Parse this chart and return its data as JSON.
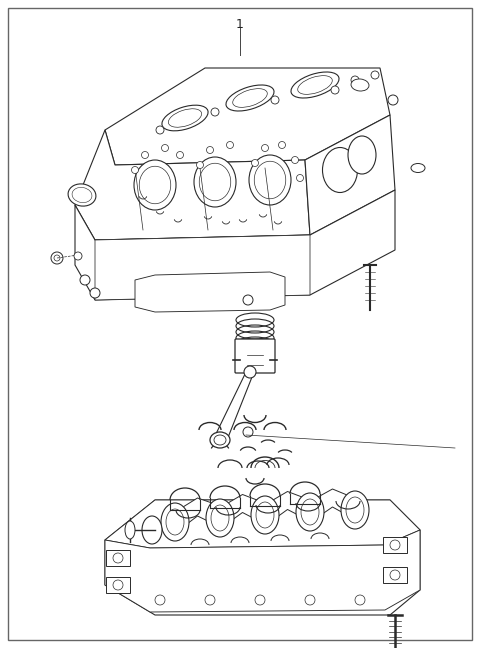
{
  "bg_color": "#ffffff",
  "line_color": "#2a2a2a",
  "line_width": 0.8,
  "fig_width": 4.8,
  "fig_height": 6.48,
  "dpi": 100,
  "title": "1"
}
